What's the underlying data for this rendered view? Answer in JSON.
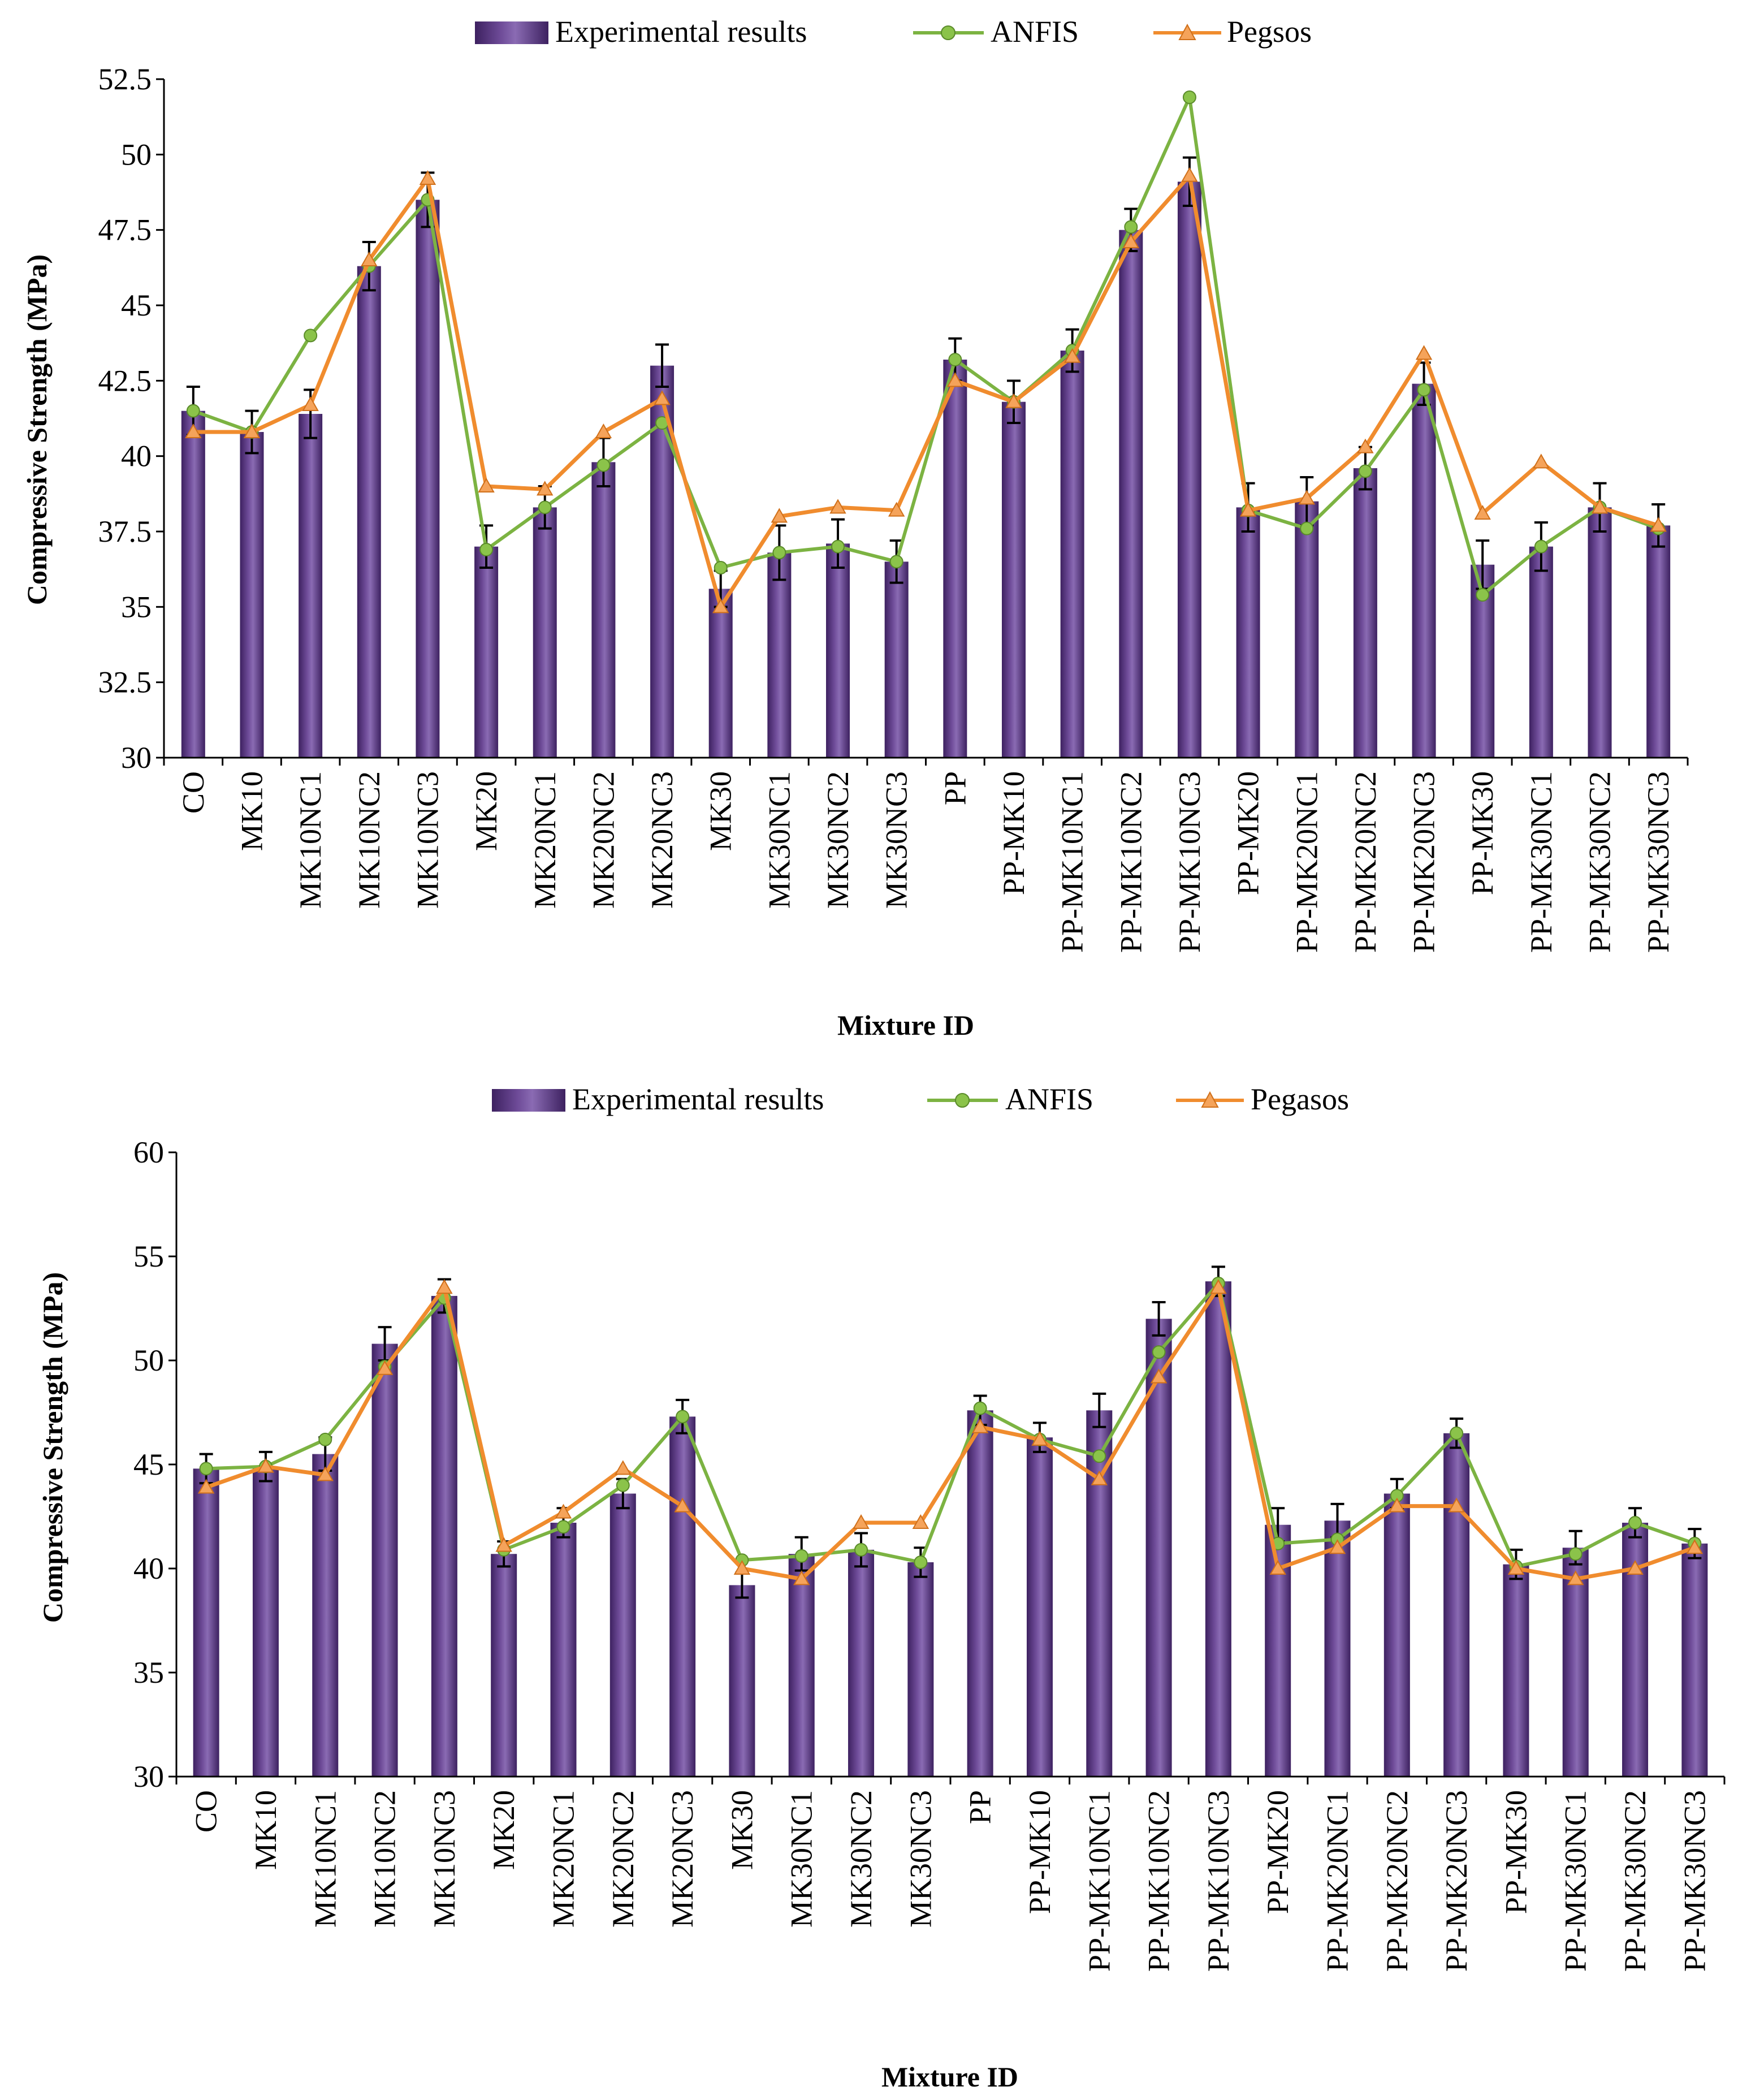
{
  "colors": {
    "bar_dark": "#4b2c6e",
    "bar_mid": "#7b5aa3",
    "bar_light": "#a58bc6",
    "anfis": "#7cb342",
    "anfis_marker": "#8bc34a",
    "pegasos": "#f08c2e",
    "axis": "#000000"
  },
  "legend": {
    "experimental": "Experimental results",
    "anfis": "ANFIS"
  },
  "chart_data": [
    {
      "type": "bar",
      "ylabel": "Compressive Strength (MPa)",
      "xlabel": "Mixture  ID",
      "pegasos_legend": "Pegsos",
      "ylim": [
        30,
        52.5
      ],
      "yticks": [
        "30",
        "32.5",
        "35",
        "37.5",
        "40",
        "42.5",
        "45",
        "47.5",
        "50",
        "52.5"
      ],
      "categories": [
        "CO",
        "MK10",
        "MK10NC1",
        "MK10NC2",
        "MK10NC3",
        "MK20",
        "MK20NC1",
        "MK20NC2",
        "MK20NC3",
        "MK30",
        "MK30NC1",
        "MK30NC2",
        "MK30NC3",
        "PP",
        "PP-MK10",
        "PP-MK10NC1",
        "PP-MK10NC2",
        "PP-MK10NC3",
        "PP-MK20",
        "PP-MK20NC1",
        "PP-MK20NC2",
        "PP-MK20NC3",
        "PP-MK30",
        "PP-MK30NC1",
        "PP-MK30NC2",
        "PP-MK30NC3"
      ],
      "series": [
        {
          "name": "Experimental results",
          "values": [
            41.5,
            40.8,
            41.4,
            46.3,
            48.5,
            37.0,
            38.3,
            39.8,
            43.0,
            35.6,
            36.8,
            37.1,
            36.5,
            43.2,
            41.8,
            43.5,
            47.5,
            49.1,
            38.3,
            38.5,
            39.6,
            42.4,
            36.4,
            37.0,
            38.3,
            37.7
          ]
        },
        {
          "name": "ANFIS",
          "values": [
            41.5,
            40.8,
            44.0,
            46.3,
            48.5,
            36.9,
            38.3,
            39.7,
            41.1,
            36.3,
            36.8,
            37.0,
            36.5,
            43.2,
            41.8,
            43.5,
            47.6,
            51.9,
            38.2,
            37.6,
            39.5,
            42.2,
            35.4,
            37.0,
            38.3,
            37.6
          ]
        },
        {
          "name": "Pegsos",
          "values": [
            40.8,
            40.8,
            41.7,
            46.5,
            49.2,
            39.0,
            38.9,
            40.8,
            41.9,
            35.0,
            38.0,
            38.3,
            38.2,
            42.5,
            41.8,
            43.3,
            47.1,
            49.3,
            38.2,
            38.6,
            40.3,
            43.4,
            38.1,
            39.8,
            38.3,
            37.7
          ]
        }
      ],
      "error": [
        0.8,
        0.7,
        0.8,
        0.8,
        0.9,
        0.7,
        0.7,
        0.8,
        0.7,
        0.6,
        0.9,
        0.8,
        0.7,
        0.7,
        0.7,
        0.7,
        0.7,
        0.8,
        0.8,
        0.8,
        0.7,
        0.7,
        0.8,
        0.8,
        0.8,
        0.7
      ]
    },
    {
      "type": "bar",
      "ylabel": "Compressive Strength (MPa)",
      "xlabel": "Mixture  ID",
      "pegasos_legend": "Pegasos",
      "ylim": [
        30,
        60
      ],
      "yticks": [
        "30",
        "35",
        "40",
        "45",
        "50",
        "55",
        "60"
      ],
      "categories": [
        "CO",
        "MK10",
        "MK10NC1",
        "MK10NC2",
        "MK10NC3",
        "MK20",
        "MK20NC1",
        "MK20NC2",
        "MK20NC3",
        "MK30",
        "MK30NC1",
        "MK30NC2",
        "MK30NC3",
        "PP",
        "PP-MK10",
        "PP-MK10NC1",
        "PP-MK10NC2",
        "PP-MK10NC3",
        "PP-MK20",
        "PP-MK20NC1",
        "PP-MK20NC2",
        "PP-MK20NC3",
        "PP-MK30",
        "PP-MK30NC1",
        "PP-MK30NC2",
        "PP-MK30NC3"
      ],
      "series": [
        {
          "name": "Experimental results",
          "values": [
            44.8,
            44.9,
            45.5,
            50.8,
            53.1,
            40.7,
            42.2,
            43.6,
            47.3,
            39.2,
            40.7,
            40.9,
            40.3,
            47.6,
            46.3,
            47.6,
            52.0,
            53.8,
            42.1,
            42.3,
            43.6,
            46.5,
            40.2,
            41.0,
            42.2,
            41.2
          ]
        },
        {
          "name": "ANFIS",
          "values": [
            44.8,
            44.9,
            46.2,
            49.7,
            53.0,
            40.9,
            42.0,
            44.0,
            47.3,
            40.4,
            40.6,
            40.9,
            40.3,
            47.7,
            46.2,
            45.4,
            50.4,
            53.7,
            41.2,
            41.4,
            43.5,
            46.5,
            40.1,
            40.7,
            42.2,
            41.2
          ]
        },
        {
          "name": "Pegasos",
          "values": [
            43.9,
            44.9,
            44.5,
            49.6,
            53.5,
            41.1,
            42.7,
            44.8,
            43.0,
            40.0,
            39.5,
            42.2,
            42.2,
            46.8,
            46.2,
            44.3,
            49.2,
            53.5,
            40.0,
            41.0,
            43.0,
            43.0,
            40.0,
            39.5,
            40.0,
            41.0
          ]
        }
      ],
      "error": [
        0.7,
        0.7,
        0.8,
        0.8,
        0.8,
        0.6,
        0.7,
        0.7,
        0.8,
        0.6,
        0.8,
        0.8,
        0.7,
        0.7,
        0.7,
        0.8,
        0.8,
        0.7,
        0.8,
        0.8,
        0.7,
        0.7,
        0.7,
        0.8,
        0.7,
        0.7
      ]
    }
  ]
}
